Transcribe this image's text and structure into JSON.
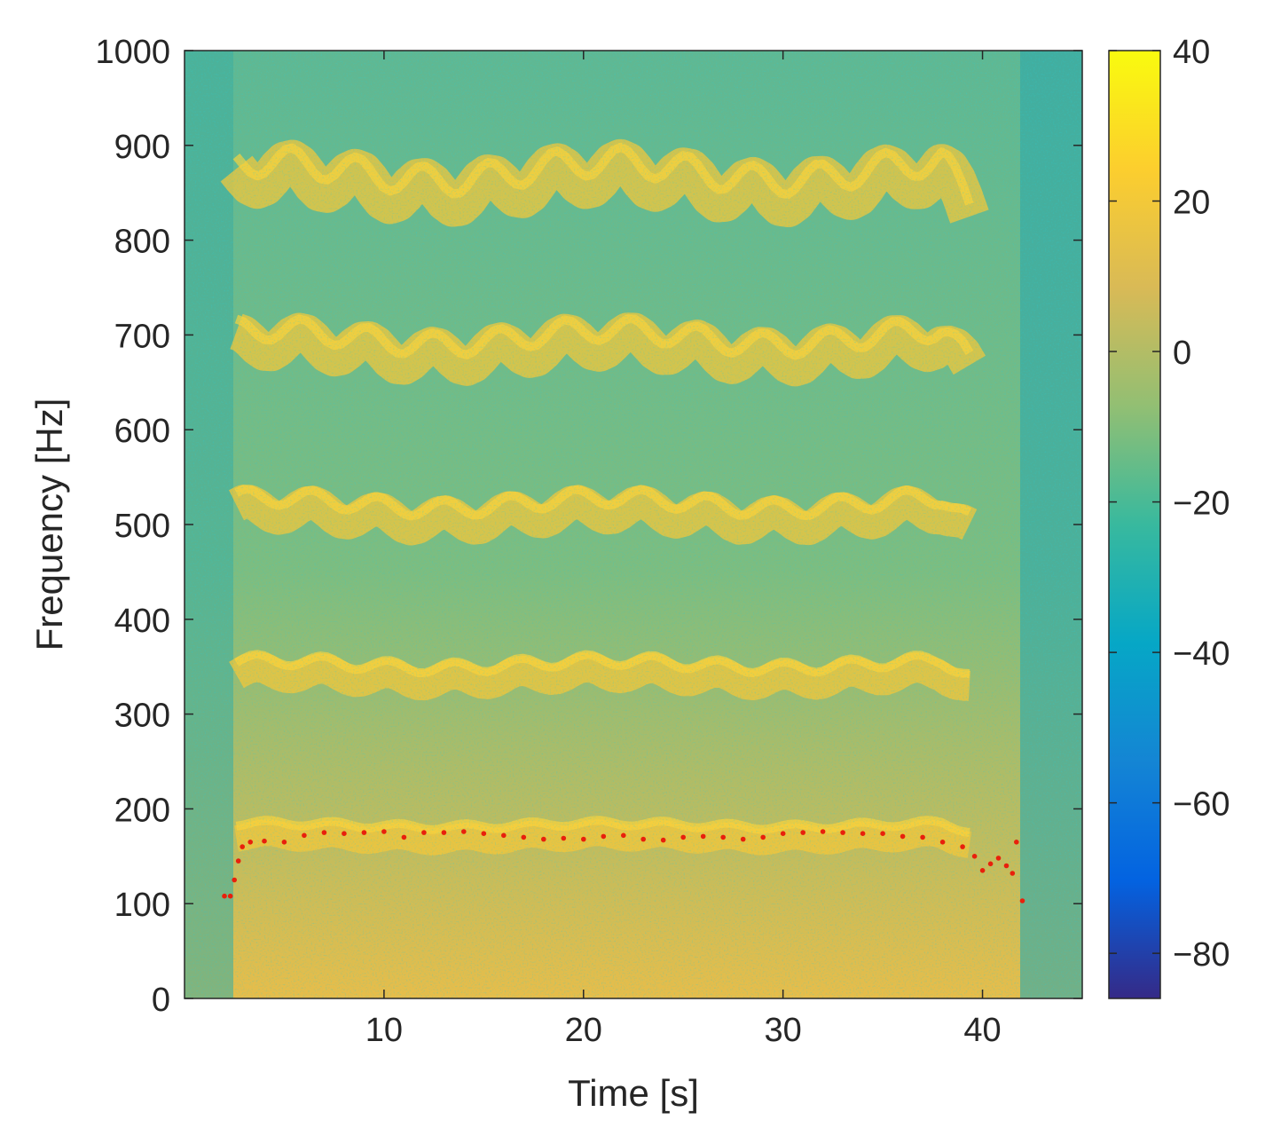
{
  "chart_data": {
    "type": "heatmap",
    "title": "",
    "xlabel": "Time [s]",
    "ylabel": "Frequency [Hz]",
    "xlim": [
      0,
      45
    ],
    "ylim": [
      0,
      1000
    ],
    "x_ticks": [
      "10",
      "20",
      "30",
      "40"
    ],
    "y_ticks": [
      "0",
      "100",
      "200",
      "300",
      "400",
      "500",
      "600",
      "700",
      "800",
      "900",
      "1000"
    ],
    "colorbar": {
      "ticks": [
        "40",
        "20",
        "0",
        "−20",
        "−40",
        "−60",
        "−80"
      ],
      "range": [
        -86,
        40
      ],
      "colormap": "parula",
      "colors": [
        "#352a87",
        "#0363e1",
        "#1485d4",
        "#06a7c6",
        "#38b99e",
        "#92bf73",
        "#d9ba56",
        "#fcce2e",
        "#f9fb0e"
      ]
    },
    "harmonic_bands_hz": [
      170,
      340,
      510,
      685,
      860
    ],
    "pitch_track": {
      "color": "#e8200c",
      "series": [
        {
          "x": 2.0,
          "y": 108
        },
        {
          "x": 2.3,
          "y": 108
        },
        {
          "x": 2.5,
          "y": 125
        },
        {
          "x": 2.7,
          "y": 145
        },
        {
          "x": 2.9,
          "y": 160
        },
        {
          "x": 3.3,
          "y": 165
        },
        {
          "x": 4.0,
          "y": 166
        },
        {
          "x": 5.0,
          "y": 165
        },
        {
          "x": 6.0,
          "y": 172
        },
        {
          "x": 7.0,
          "y": 175
        },
        {
          "x": 8.0,
          "y": 174
        },
        {
          "x": 9.0,
          "y": 175
        },
        {
          "x": 10.0,
          "y": 176
        },
        {
          "x": 11.0,
          "y": 170
        },
        {
          "x": 12.0,
          "y": 175
        },
        {
          "x": 13.0,
          "y": 175
        },
        {
          "x": 14.0,
          "y": 176
        },
        {
          "x": 15.0,
          "y": 174
        },
        {
          "x": 16.0,
          "y": 172
        },
        {
          "x": 17.0,
          "y": 170
        },
        {
          "x": 18.0,
          "y": 168
        },
        {
          "x": 19.0,
          "y": 169
        },
        {
          "x": 20.0,
          "y": 168
        },
        {
          "x": 21.0,
          "y": 171
        },
        {
          "x": 22.0,
          "y": 172
        },
        {
          "x": 23.0,
          "y": 168
        },
        {
          "x": 24.0,
          "y": 167
        },
        {
          "x": 25.0,
          "y": 170
        },
        {
          "x": 26.0,
          "y": 171
        },
        {
          "x": 27.0,
          "y": 170
        },
        {
          "x": 28.0,
          "y": 168
        },
        {
          "x": 29.0,
          "y": 170
        },
        {
          "x": 30.0,
          "y": 174
        },
        {
          "x": 31.0,
          "y": 175
        },
        {
          "x": 32.0,
          "y": 176
        },
        {
          "x": 33.0,
          "y": 175
        },
        {
          "x": 34.0,
          "y": 174
        },
        {
          "x": 35.0,
          "y": 174
        },
        {
          "x": 36.0,
          "y": 171
        },
        {
          "x": 37.0,
          "y": 170
        },
        {
          "x": 38.0,
          "y": 165
        },
        {
          "x": 39.0,
          "y": 160
        },
        {
          "x": 39.6,
          "y": 150
        },
        {
          "x": 40.0,
          "y": 135
        },
        {
          "x": 40.4,
          "y": 142
        },
        {
          "x": 40.8,
          "y": 148
        },
        {
          "x": 41.2,
          "y": 140
        },
        {
          "x": 41.5,
          "y": 132
        },
        {
          "x": 41.7,
          "y": 165
        },
        {
          "x": 42.0,
          "y": 103
        }
      ]
    }
  }
}
